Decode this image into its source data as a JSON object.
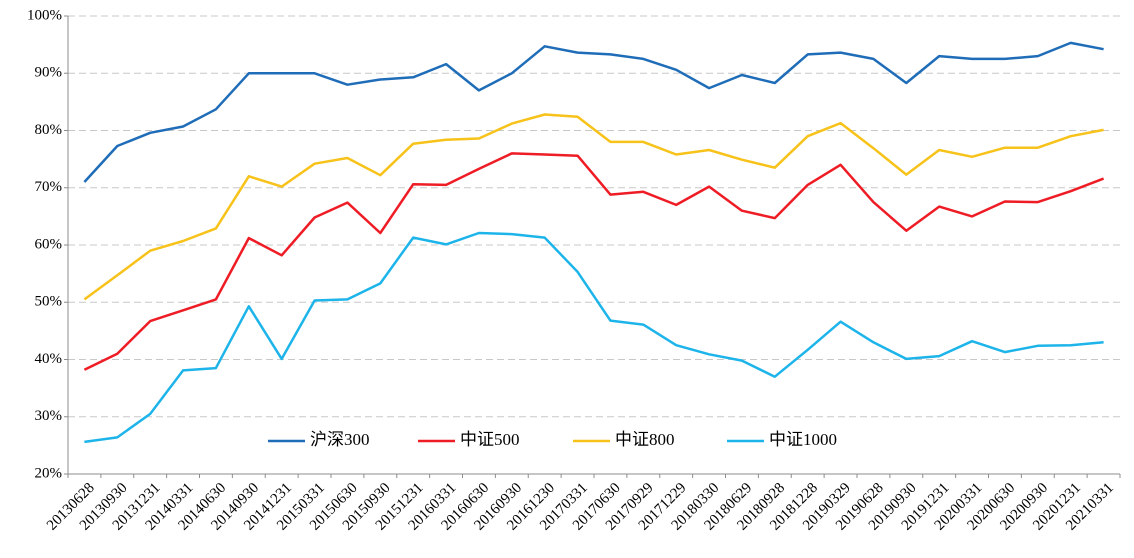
{
  "chart_data": {
    "type": "line",
    "categories": [
      "20130628",
      "20130930",
      "20131231",
      "20140331",
      "20140630",
      "20140930",
      "20141231",
      "20150331",
      "20150630",
      "20150930",
      "20151231",
      "20160331",
      "20160630",
      "20160930",
      "20161230",
      "20170331",
      "20170630",
      "20170929",
      "20171229",
      "20180330",
      "20180629",
      "20180928",
      "20181228",
      "20190329",
      "20190628",
      "20190930",
      "20191231",
      "20200331",
      "20200630",
      "20200930",
      "20201231",
      "20210331"
    ],
    "series": [
      {
        "name": "沪深300",
        "color": "#1f6db8",
        "values": [
          71,
          77.3,
          79.6,
          80.7,
          83.7,
          90,
          90,
          90,
          88,
          88.9,
          89.3,
          91.6,
          87,
          90,
          94.7,
          93.6,
          93.3,
          92.5,
          90.6,
          87.4,
          89.7,
          88.3,
          93.3,
          93.6,
          92.5,
          88.3,
          93,
          92.5,
          92.5,
          93,
          95.3,
          94.2
        ]
      },
      {
        "name": "中证500",
        "color": "#ee1c25",
        "values": [
          38.2,
          41,
          46.7,
          48.6,
          50.5,
          61.2,
          58.2,
          64.8,
          67.4,
          62.1,
          70.6,
          70.5,
          73.3,
          76,
          75.8,
          75.6,
          68.8,
          69.3,
          67,
          70.2,
          66,
          64.7,
          70.5,
          74,
          67.5,
          62.5,
          66.7,
          65,
          67.6,
          67.5,
          69.4,
          71.6
        ]
      },
      {
        "name": "中证800",
        "color": "#f7c21a",
        "values": [
          50.5,
          54.7,
          59,
          60.7,
          62.9,
          72,
          70.2,
          74.2,
          75.2,
          72.2,
          77.7,
          78.4,
          78.6,
          81.2,
          82.8,
          82.4,
          78,
          78,
          75.8,
          76.6,
          74.9,
          73.5,
          79,
          81.3,
          76.9,
          72.3,
          76.6,
          75.4,
          77,
          77,
          79,
          80.1
        ]
      },
      {
        "name": "中证1000",
        "color": "#1db4ea",
        "values": [
          25.6,
          26.4,
          30.5,
          38.1,
          38.5,
          49.3,
          40.1,
          50.3,
          50.5,
          53.3,
          61.3,
          60.1,
          62.1,
          61.9,
          61.3,
          55.3,
          46.8,
          46.1,
          42.5,
          40.9,
          39.8,
          37,
          41.7,
          46.6,
          43,
          40.1,
          40.6,
          43.2,
          41.3,
          42.4,
          42.5,
          43
        ]
      }
    ],
    "ylim": [
      20,
      100
    ],
    "yticks": [
      {
        "value": 20,
        "label": "20%"
      },
      {
        "value": 30,
        "label": "30%"
      },
      {
        "value": 40,
        "label": "40%"
      },
      {
        "value": 50,
        "label": "50%"
      },
      {
        "value": 60,
        "label": "60%"
      },
      {
        "value": 70,
        "label": "70%"
      },
      {
        "value": 80,
        "label": "80%"
      },
      {
        "value": 90,
        "label": "90%"
      },
      {
        "value": 100,
        "label": "100%"
      }
    ],
    "grid": true
  }
}
